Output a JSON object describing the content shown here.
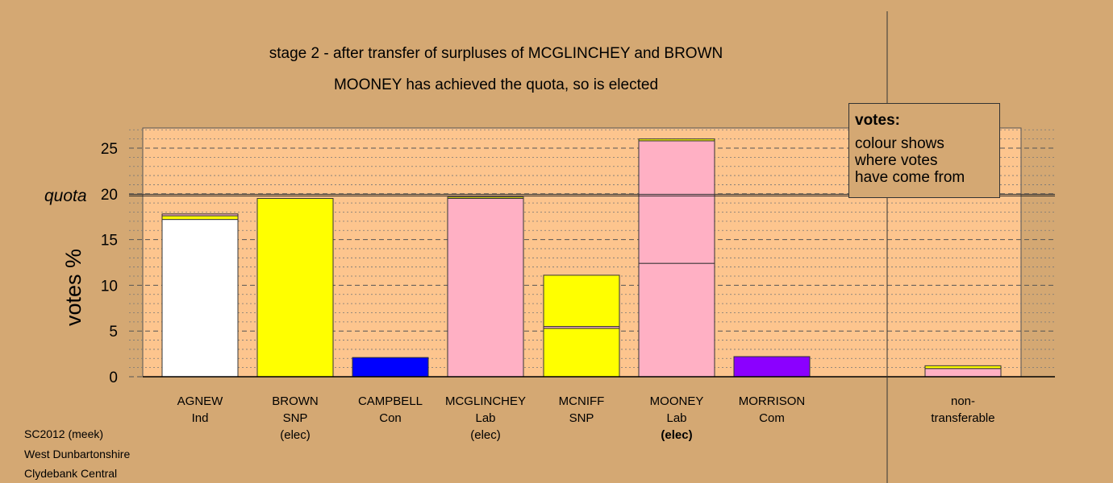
{
  "chart_data": {
    "type": "bar",
    "title": "stage 2 - after transfer of surpluses of MCGLINCHEY and BROWN",
    "subtitle": "MOONEY has achieved the quota, so is elected",
    "ylabel": "votes %",
    "ylim": [
      0,
      27.2
    ],
    "yticks": [
      0,
      5,
      10,
      15,
      20,
      25
    ],
    "quota": 19.9,
    "quota_label": "quota",
    "categories": [
      {
        "name": "AGNEW",
        "party": "Ind",
        "status": ""
      },
      {
        "name": "BROWN",
        "party": "SNP",
        "status": "(elec)"
      },
      {
        "name": "CAMPBELL",
        "party": "Con",
        "status": ""
      },
      {
        "name": "MCGLINCHEY",
        "party": "Lab",
        "status": "(elec)"
      },
      {
        "name": "MCNIFF",
        "party": "SNP",
        "status": ""
      },
      {
        "name": "MOONEY",
        "party": "Lab",
        "status": "(elec)",
        "status_bold": true
      },
      {
        "name": "MORRISON",
        "party": "Com",
        "status": ""
      }
    ],
    "bars": [
      {
        "segments": [
          {
            "value": 17.2,
            "color": "#ffffff"
          },
          {
            "value": 0.4,
            "color": "#ffff00"
          },
          {
            "value": 0.2,
            "color": "#ffb0c4"
          }
        ]
      },
      {
        "segments": [
          {
            "value": 19.5,
            "color": "#ffff00"
          }
        ]
      },
      {
        "segments": [
          {
            "value": 2.1,
            "color": "#0000ff"
          }
        ]
      },
      {
        "segments": [
          {
            "value": 19.5,
            "color": "#ffb0c4"
          },
          {
            "value": 0.15,
            "color": "#ffff00"
          }
        ]
      },
      {
        "segments": [
          {
            "value": 5.3,
            "color": "#ffff00"
          },
          {
            "value": 0.2,
            "color": "#ffb0c4"
          },
          {
            "value": 5.6,
            "color": "#ffff00"
          }
        ]
      },
      {
        "segments": [
          {
            "value": 12.4,
            "color": "#ffb0c4"
          },
          {
            "value": 13.4,
            "color": "#ffb0c4"
          },
          {
            "value": 0.2,
            "color": "#ffff00"
          }
        ]
      },
      {
        "segments": [
          {
            "value": 2.2,
            "color": "#8b00ff"
          }
        ]
      }
    ],
    "non_transferable": {
      "label_line1": "non-",
      "label_line2": "transferable",
      "segments": [
        {
          "value": 0.9,
          "color": "#ffb0c4"
        },
        {
          "value": 0.3,
          "color": "#ffff00"
        }
      ]
    },
    "grid": true
  },
  "legend": {
    "title": "votes:",
    "line1": "colour shows",
    "line2": "where votes",
    "line3": "have come from"
  },
  "footer": {
    "line1": "SC2012 (meek)",
    "line2": "West Dunbartonshire",
    "line3": "Clydebank Central"
  },
  "colors": {
    "background": "#d4a873",
    "plot_background": "#fdc58e"
  }
}
